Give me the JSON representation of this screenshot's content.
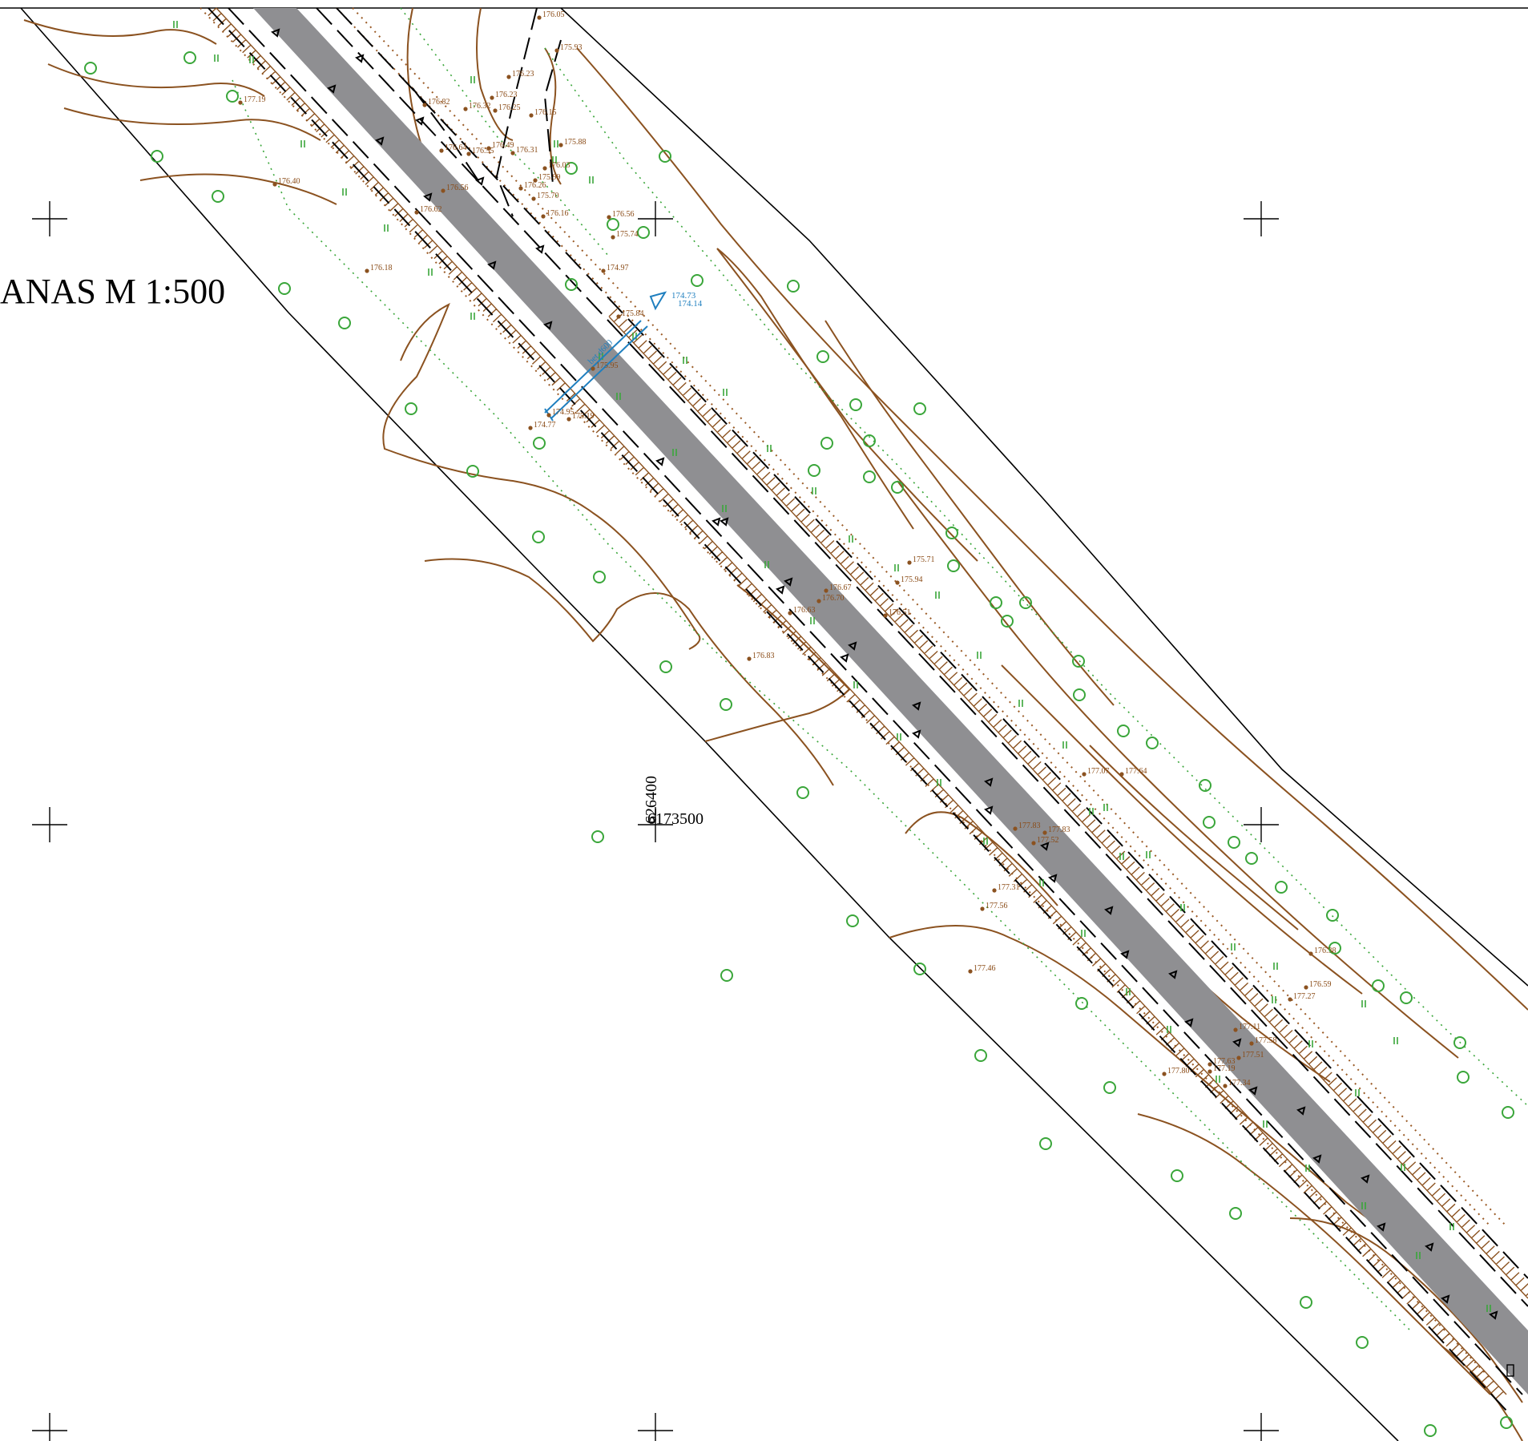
{
  "map": {
    "title": "ANAS M 1:500",
    "grid_labels": {
      "easting": "626400",
      "northing": "6173500"
    },
    "colors": {
      "road": "#8f8f92",
      "contour": "#8b5220",
      "vegetation": "#3aa63a",
      "utility": "#1f7fbf",
      "linework": "#000000"
    },
    "blue_labels": [
      "bet.d600",
      "174.73",
      "174.14"
    ],
    "elevation_labels": [
      "176.05",
      "175.93",
      "176.23",
      "176.23",
      "176.82",
      "176.32",
      "176.25",
      "176.15",
      "176.64",
      "176.55",
      "176.49",
      "176.31",
      "175.88",
      "176.03",
      "176.26",
      "175.99",
      "175.70",
      "176.16",
      "176.56",
      "176.40",
      "176.62",
      "176.18",
      "177.19",
      "176.56",
      "175.74",
      "174.97",
      "175.84",
      "175.95",
      "174.95",
      "175.19",
      "174.77",
      "175.94",
      "176.67",
      "176.70",
      "176.63",
      "176.83",
      "175.71",
      "176.51",
      "177.07",
      "177.64",
      "177.83",
      "177.52",
      "177.83",
      "177.31",
      "177.56",
      "177.46",
      "176.38",
      "176.59",
      "177.27",
      "177.58",
      "177.51",
      "177.63",
      "177.80",
      "177.19",
      "177.34",
      "177.11"
    ]
  }
}
